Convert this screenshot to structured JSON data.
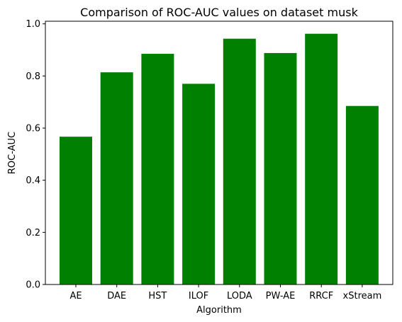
{
  "chart_data": {
    "type": "bar",
    "title": "Comparison of ROC-AUC values on dataset musk",
    "xlabel": "Algorithm",
    "ylabel": "ROC-AUC",
    "categories": [
      "AE",
      "DAE",
      "HST",
      "ILOF",
      "LODA",
      "PW-AE",
      "RRCF",
      "xStream"
    ],
    "values": [
      0.567,
      0.814,
      0.885,
      0.77,
      0.943,
      0.888,
      0.962,
      0.685
    ],
    "ylim": [
      0,
      1.01
    ],
    "yticks": [
      "0.0",
      "0.2",
      "0.4",
      "0.6",
      "0.8",
      "1.0"
    ],
    "bar_color": "#008000",
    "grid": false,
    "legend": "none"
  }
}
